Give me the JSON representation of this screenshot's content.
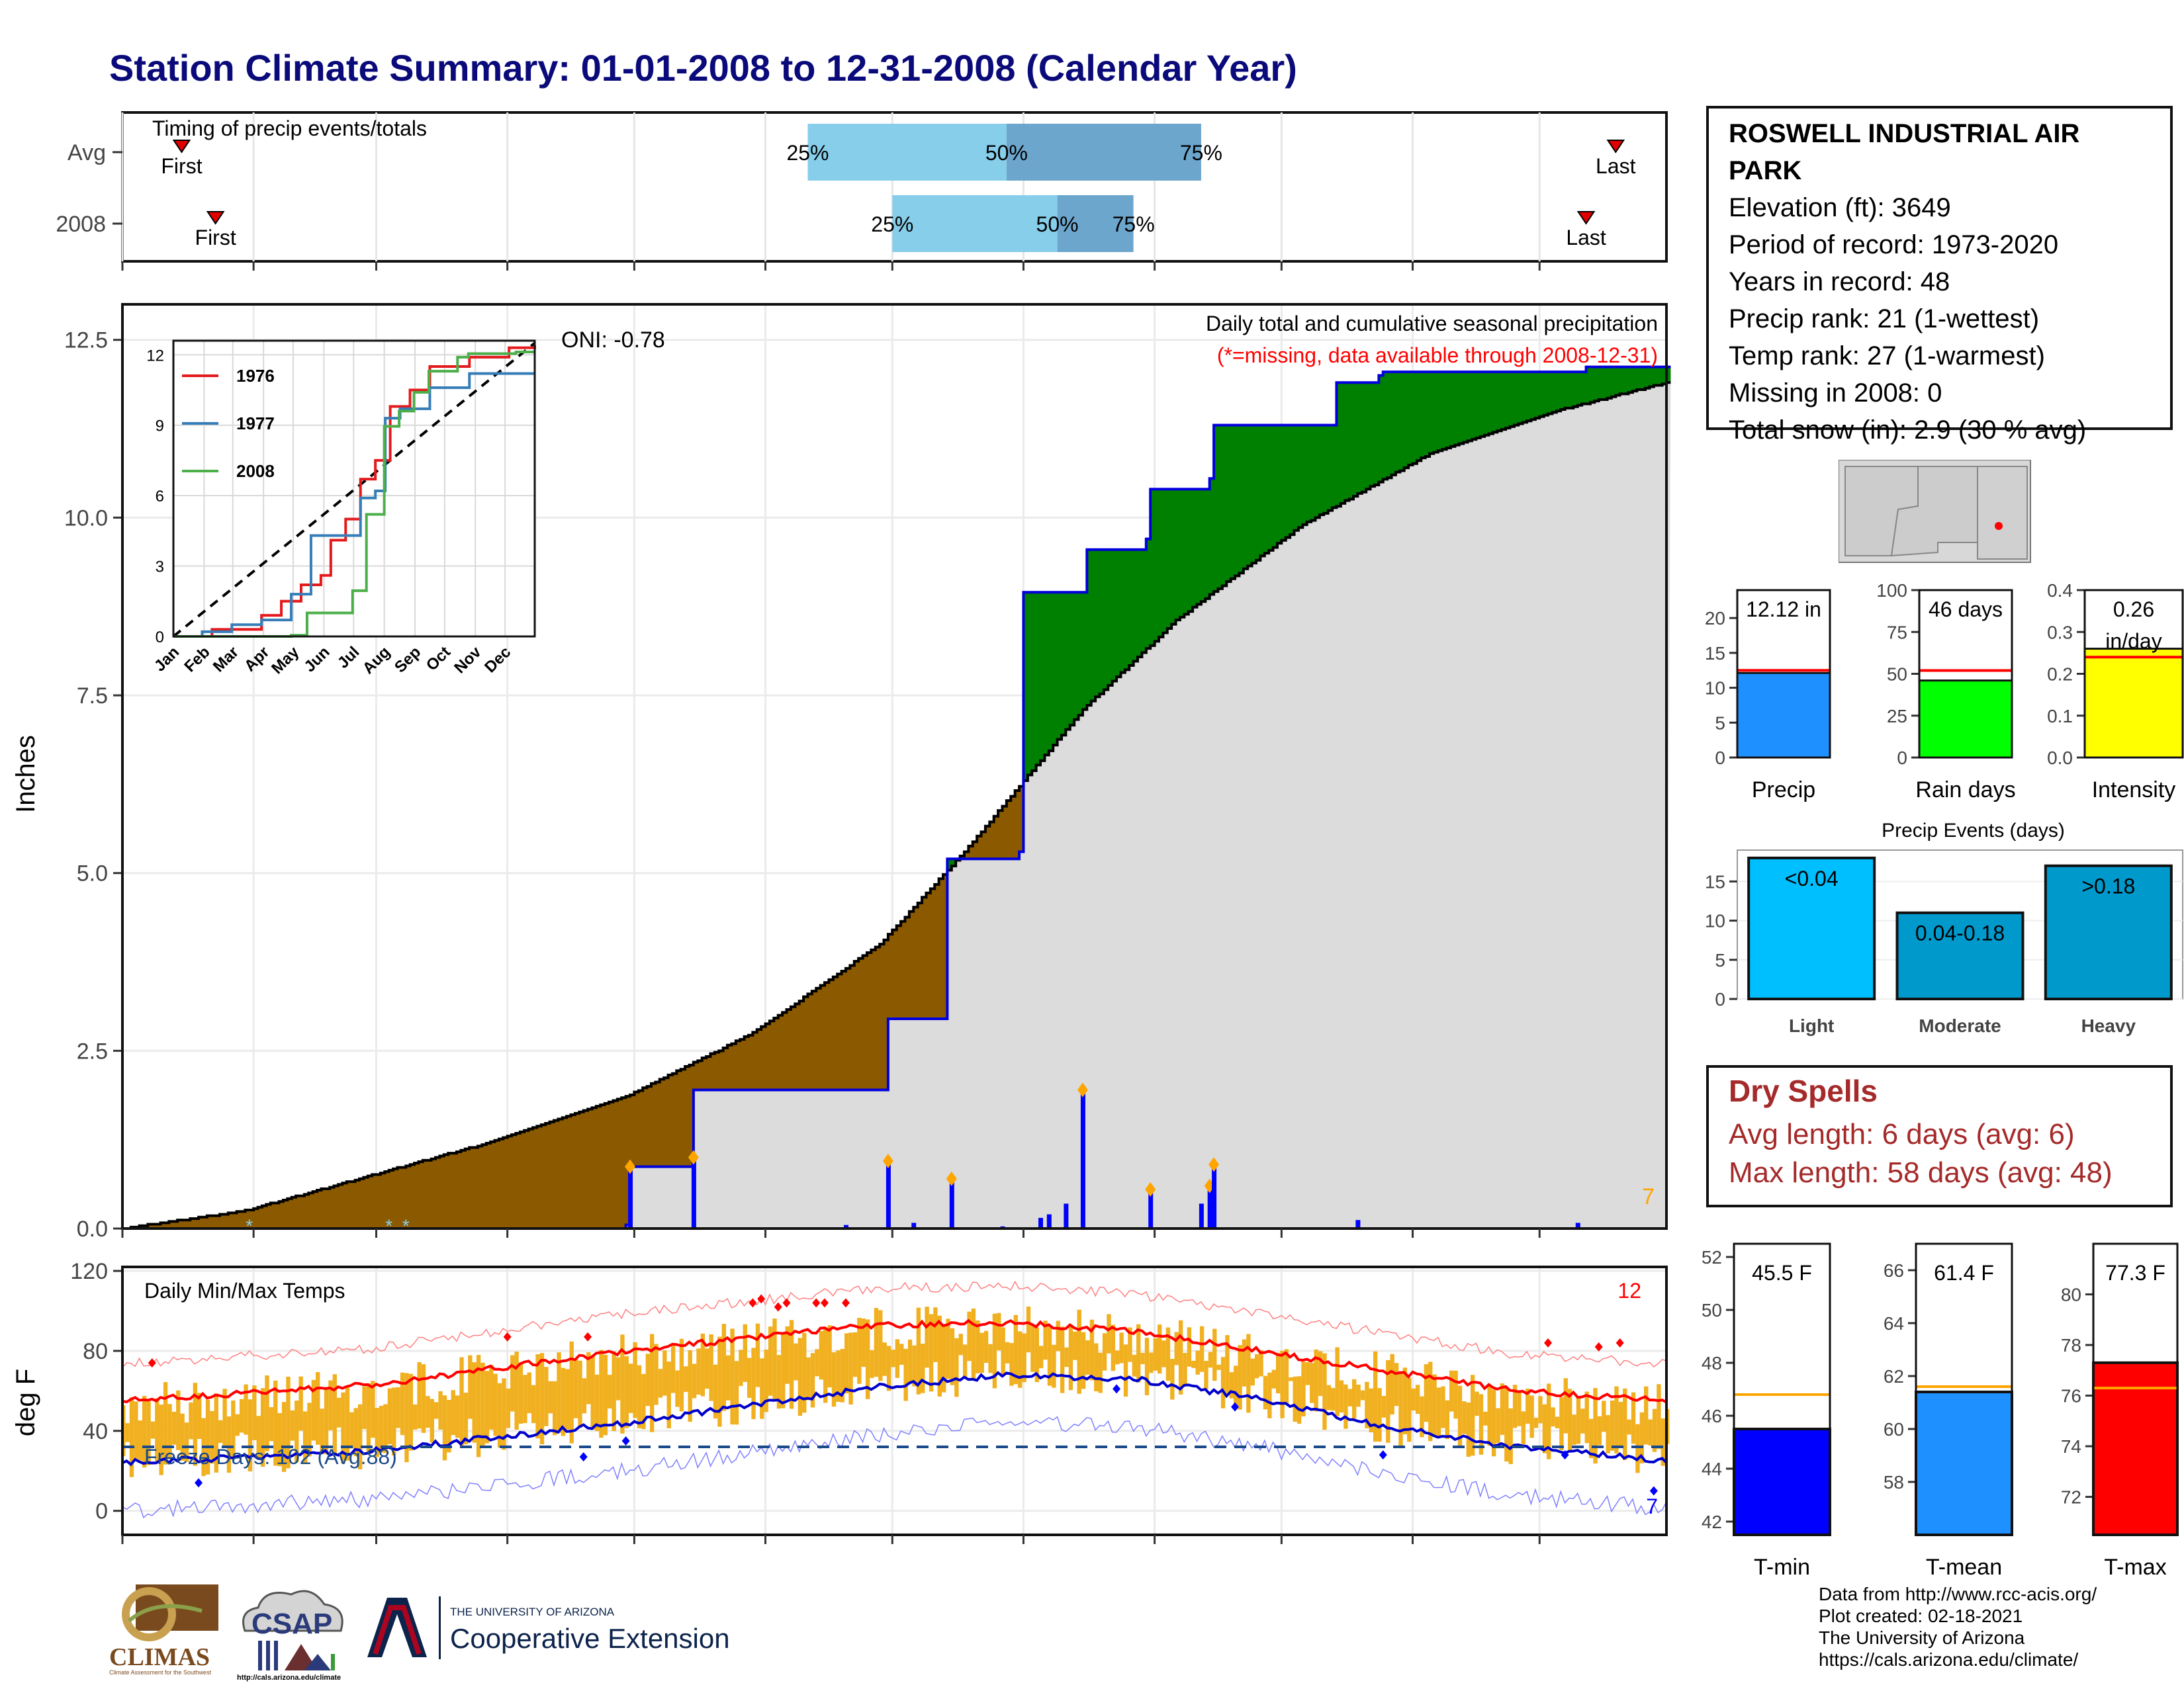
{
  "title": "Station Climate Summary: 01-01-2008 to 12-31-2008 (Calendar Year)",
  "timing": {
    "label": "Timing of precip events/totals",
    "rows": [
      {
        "name": "Avg",
        "first_label": "First",
        "last_label": "Last",
        "first_day": 15,
        "last_day": 354,
        "p25": 163,
        "p50": 210,
        "p75": 256
      },
      {
        "name": "2008",
        "first_label": "First",
        "last_label": "Last",
        "first_day": 23,
        "last_day": 347,
        "p25": 183,
        "p50": 222,
        "p75": 240
      }
    ],
    "pct_labels": [
      "25%",
      "50%",
      "75%"
    ]
  },
  "station": {
    "name": "ROSWELL INDUSTRIAL AIR PARK",
    "lines": [
      "Elevation (ft): 3649",
      "Period of record: 1973-2020",
      "Years in record: 48",
      "Precip rank: 21 (1-wettest)",
      "Temp rank: 27 (1-warmest)",
      "Missing in 2008: 0",
      "Total snow (in): 2.9 (30 % avg)"
    ]
  },
  "precip_chart": {
    "ylabel": "Inches",
    "header": "Daily total and cumulative seasonal precipitation",
    "missing_note": "(*=missing, data available through 2008-12-31)",
    "oni": "ONI: -0.78",
    "corner_count": "7",
    "yticks": [
      "0.0",
      "2.5",
      "5.0",
      "7.5",
      "10.0",
      "12.5"
    ],
    "ylim": [
      0,
      13.0
    ]
  },
  "chart_data": [
    {
      "type": "area",
      "name": "cumulative precipitation 2008 vs average",
      "x_units": "day of year",
      "series": [
        {
          "name": "2008 cumulative",
          "x": [
            1,
            120,
            121,
            135,
            136,
            181,
            182,
            195,
            196,
            213,
            214,
            228,
            229,
            243,
            244,
            258,
            259,
            287,
            288,
            298,
            299,
            346,
            347,
            366
          ],
          "y": [
            0,
            0.05,
            0.87,
            0.87,
            1.95,
            1.95,
            2.95,
            2.95,
            5.2,
            5.3,
            8.95,
            8.95,
            9.55,
            9.7,
            10.4,
            10.55,
            11.3,
            11.3,
            11.9,
            12.0,
            12.05,
            12.05,
            12.12,
            12.12
          ]
        },
        {
          "name": "average cumulative",
          "x": [
            1,
            30,
            60,
            90,
            120,
            150,
            180,
            200,
            228,
            250,
            280,
            310,
            340,
            366
          ],
          "y": [
            0,
            0.25,
            0.75,
            1.25,
            1.85,
            2.75,
            4.0,
            5.3,
            7.3,
            8.55,
            9.9,
            10.9,
            11.5,
            11.9
          ]
        }
      ]
    },
    {
      "type": "bar",
      "name": "daily precipitation",
      "x": [
        121,
        136,
        172,
        182,
        188,
        197,
        209,
        218,
        220,
        224,
        228,
        244,
        256,
        258,
        259,
        293,
        345
      ],
      "values": [
        0.87,
        1.0,
        0.05,
        0.95,
        0.08,
        0.7,
        0.03,
        0.15,
        0.2,
        0.35,
        1.95,
        0.55,
        0.35,
        0.6,
        0.9,
        0.12,
        0.08
      ]
    },
    {
      "type": "line",
      "name": "inset cumulative precip",
      "series": [
        {
          "name": "1976",
          "x": [
            1,
            40,
            70,
            90,
            110,
            130,
            150,
            160,
            175,
            190,
            205,
            220,
            240,
            260,
            300,
            340,
            366
          ],
          "y": [
            0,
            0.3,
            0.3,
            0.9,
            1.5,
            2.2,
            2.6,
            4.1,
            5.0,
            6.7,
            7.5,
            9.8,
            10.5,
            11.5,
            11.9,
            12.3,
            12.4
          ]
        },
        {
          "name": "1977",
          "x": [
            1,
            30,
            60,
            90,
            120,
            140,
            170,
            190,
            205,
            215,
            230,
            260,
            300,
            366
          ],
          "y": [
            0,
            0.2,
            0.5,
            0.7,
            1.8,
            4.3,
            4.3,
            5.9,
            6.2,
            9.3,
            9.7,
            10.6,
            11.2,
            11.2
          ]
        },
        {
          "name": "2008",
          "x": [
            1,
            120,
            136,
            182,
            196,
            214,
            229,
            244,
            259,
            288,
            299,
            347,
            366
          ],
          "y": [
            0,
            0.05,
            1.0,
            1.95,
            5.2,
            8.95,
            9.6,
            10.4,
            11.3,
            11.9,
            12.05,
            12.12,
            12.12
          ]
        }
      ],
      "xticks": [
        "Jan",
        "Feb",
        "Mar",
        "Apr",
        "May",
        "Jun",
        "Jul",
        "Aug",
        "Sep",
        "Oct",
        "Nov",
        "Dec"
      ],
      "yticks": [
        "0",
        "3",
        "6",
        "9",
        "12"
      ]
    },
    {
      "type": "bar",
      "name": "summary precip bars",
      "categories": [
        "Precip",
        "Rain days",
        "Intensity"
      ],
      "values": [
        12.12,
        46,
        0.26
      ],
      "averages": [
        12.5,
        52,
        0.24
      ],
      "ylims": [
        [
          0,
          24
        ],
        [
          0,
          100
        ],
        [
          0,
          0.4
        ]
      ],
      "yticks": [
        [
          "0",
          "5",
          "10",
          "15",
          "20"
        ],
        [
          "0",
          "25",
          "50",
          "75",
          "100"
        ],
        [
          "0.0",
          "0.1",
          "0.2",
          "0.3",
          "0.4"
        ]
      ],
      "value_labels": [
        "12.12 in",
        "46 days",
        "0.26 in/day"
      ],
      "colors": [
        "#1e90ff",
        "#00ff00",
        "#ffff00"
      ]
    },
    {
      "type": "bar",
      "name": "Precip Events (days)",
      "title": "Precip Events (days)",
      "categories": [
        "Light",
        "Moderate",
        "Heavy"
      ],
      "bar_labels": [
        "<0.04",
        "0.04-0.18",
        ">0.18"
      ],
      "values": [
        18,
        11,
        17
      ],
      "yticks": [
        "0",
        "5",
        "10",
        "15"
      ],
      "ylim": [
        0,
        19
      ],
      "colors": [
        "#00bfff",
        "#0099cc",
        "#0099cc"
      ]
    },
    {
      "type": "bar",
      "name": "daily min/max temps",
      "ylabel": "deg F",
      "label": "Daily Min/Max Temps",
      "freeze_label": "Freeze Days: 102 (Avg:88)",
      "freeze_line": 32,
      "count_top": "12",
      "count_bottom": "7",
      "yticks": [
        "0",
        "40",
        "80",
        "120"
      ],
      "ylim": [
        -12,
        122
      ],
      "avg_max": {
        "x": [
          1,
          60,
          120,
          180,
          210,
          240,
          270,
          300,
          330,
          366
        ],
        "y": [
          55,
          63,
          80,
          93,
          94,
          90,
          80,
          70,
          60,
          55
        ]
      },
      "avg_min": {
        "x": [
          1,
          60,
          120,
          180,
          210,
          240,
          270,
          300,
          330,
          366
        ],
        "y": [
          24,
          30,
          44,
          62,
          68,
          66,
          56,
          42,
          32,
          25
        ]
      }
    },
    {
      "type": "bar",
      "name": "summary temp bars",
      "categories": [
        "T-min",
        "T-mean",
        "T-max"
      ],
      "values": [
        45.5,
        61.4,
        77.3
      ],
      "averages": [
        46.8,
        61.6,
        76.3
      ],
      "value_labels": [
        "45.5 F",
        "61.4 F",
        "77.3 F"
      ],
      "ylims": [
        [
          41.5,
          52.5
        ],
        [
          56,
          67
        ],
        [
          70.5,
          82
        ]
      ],
      "yticks": [
        [
          "42",
          "44",
          "46",
          "48",
          "50",
          "52"
        ],
        [
          "58",
          "60",
          "62",
          "64",
          "66"
        ],
        [
          "72",
          "74",
          "76",
          "78",
          "80"
        ]
      ],
      "colors": [
        "#0000ff",
        "#1e90ff",
        "#ff0000"
      ]
    }
  ],
  "months": [
    "Jan",
    "Feb",
    "Mar",
    "Apr",
    "May",
    "Jun",
    "Jul",
    "Aug",
    "Sep",
    "Oct",
    "Nov",
    "Dec"
  ],
  "dry_spells": {
    "title": "Dry Spells",
    "avg": "Avg length: 6 days (avg: 6)",
    "max": "Max length: 58 days (avg: 48)"
  },
  "footer": {
    "lines": [
      "Data from http://www.rcc-acis.org/",
      "Plot created: 02-18-2021",
      "The University of Arizona",
      "https://cals.arizona.edu/climate/"
    ],
    "logos": {
      "climas": "CLIMAS",
      "climas_small": "Climate Assessment for the Southwest",
      "csap": "CSAP",
      "csap_url": "http://cals.arizona.edu/climate",
      "ua_small": "THE UNIVERSITY OF ARIZONA",
      "ua_big": "Cooperative Extension"
    }
  }
}
